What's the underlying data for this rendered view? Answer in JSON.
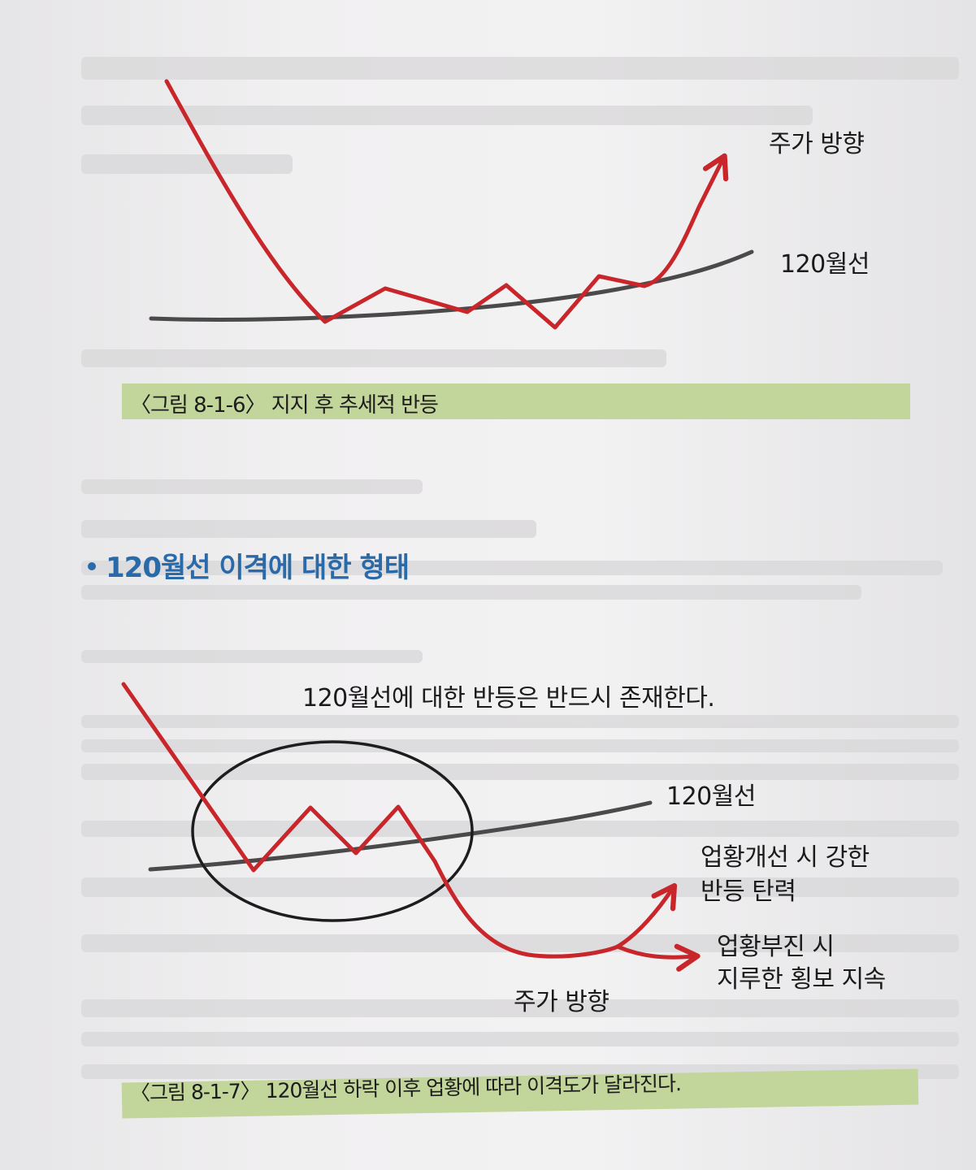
{
  "figure_1": {
    "price_label": "주가 방향",
    "ma_label": "120월선",
    "caption": "〈그림 8-1-6〉 지지 후 추세적 반등",
    "colors": {
      "price": "#c8262a",
      "ma": "#4a4a4a",
      "caption_bg": "#c2d59a"
    }
  },
  "section": {
    "heading": "120월선 이격에 대한 형태"
  },
  "figure_2": {
    "note": "120월선에 대한 반등은 반드시 존재한다.",
    "ma_label": "120월선",
    "strong_rebound_line1": "업황개선 시 강한",
    "strong_rebound_line2": "반등 탄력",
    "weak_line1": "업황부진 시",
    "weak_line2": "지루한 횡보 지속",
    "price_label": "주가 방향",
    "caption": "〈그림 8-1-7〉 120월선 하락 이후 업황에 따라 이격도가 달라진다.",
    "colors": {
      "price": "#c8262a",
      "ma": "#4a4a4a",
      "heading": "#2a6aa8"
    }
  }
}
